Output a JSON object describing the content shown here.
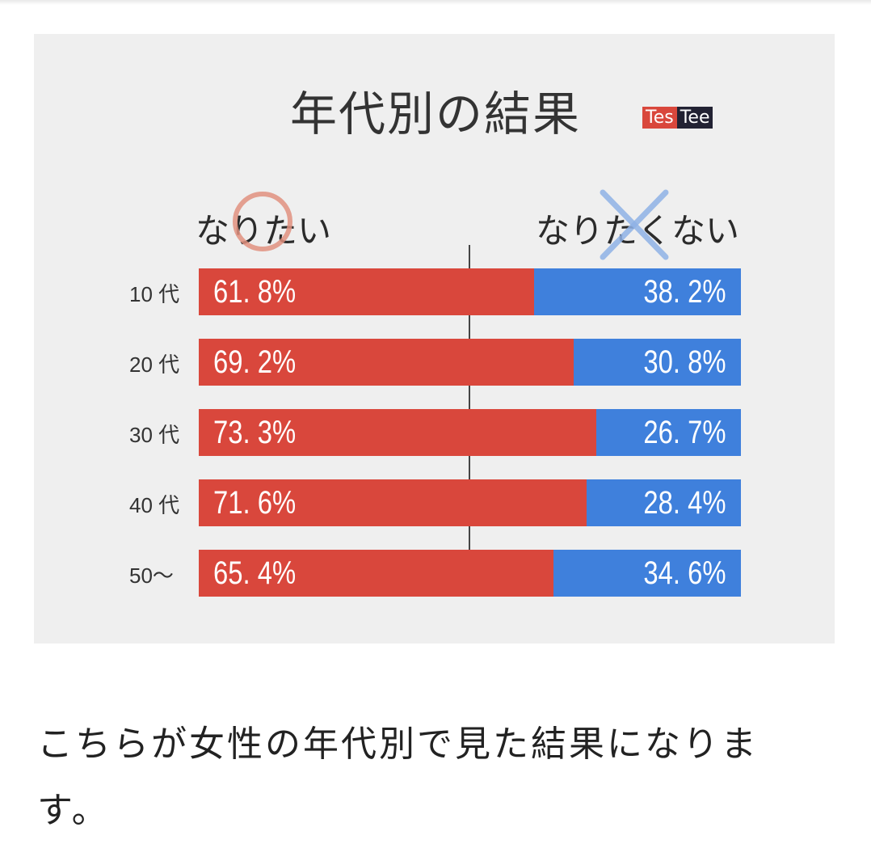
{
  "header": {
    "logo_left": "Tes",
    "logo_right": "Tee"
  },
  "colors": {
    "want": "#d9473c",
    "not_want": "#3f80dc",
    "logo_left_bg": "#d9473c",
    "logo_right_bg": "#222233"
  },
  "chart_data": {
    "type": "bar",
    "orientation": "horizontal",
    "stacked": true,
    "title": "年代別の結果",
    "categories": [
      "10 代",
      "20 代",
      "30 代",
      "40 代",
      "50〜"
    ],
    "series": [
      {
        "name": "なりたい",
        "values": [
          61.8,
          69.2,
          73.3,
          71.6,
          65.4
        ]
      },
      {
        "name": "なりたくない",
        "values": [
          38.2,
          30.8,
          26.7,
          28.4,
          34.6
        ]
      }
    ],
    "value_labels_want": [
      "61. 8%",
      "69. 2%",
      "73. 3%",
      "71. 6%",
      "65. 4%"
    ],
    "value_labels_not": [
      "38. 2%",
      "30. 8%",
      "26. 7%",
      "28. 4%",
      "34. 6%"
    ],
    "xlim": [
      0,
      100
    ],
    "legend": "top",
    "grid": false
  },
  "caption": "こちらが女性の年代別で見た結果になります。"
}
